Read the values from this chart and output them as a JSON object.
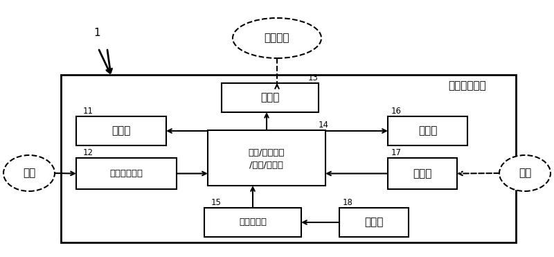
{
  "bg_color": "#ffffff",
  "fig_width": 8.0,
  "fig_height": 3.71,
  "label_1": "1",
  "label_top_ellipse": "知觉信息",
  "label_main_box": "体动测定装置",
  "label_11": "11",
  "label_12": "12",
  "label_13": "13",
  "label_14": "14",
  "label_15": "15",
  "label_16": "16",
  "label_17": "17",
  "label_18": "18",
  "box_comm": "通信部",
  "box_acc": "加速度检测部",
  "box_disp": "显示部",
  "box_ctrl_line1": "电源/显示控制",
  "box_ctrl_line2": "/检测/运算部",
  "box_pconn": "电源连接部",
  "box_mem": "存储部",
  "box_op": "操作部",
  "box_ps": "电源部",
  "ellipse_body": "体动",
  "ellipse_op": "操作",
  "font_size_main": 11,
  "font_size_small": 9.5,
  "font_size_label": 8.5,
  "font_size_title": 11
}
